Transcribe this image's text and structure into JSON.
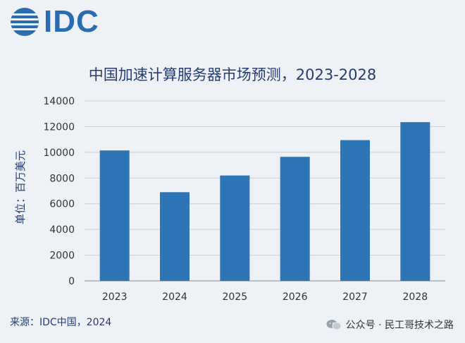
{
  "logo": {
    "text": "IDC"
  },
  "title": "中国加速计算服务器市场预测，2023-2028",
  "ylabel": "单位：百万美元",
  "source": "来源：IDC中国，2024",
  "watermark": "公众号 · 民工哥技术之路",
  "colors": {
    "bar": "#2e75b6",
    "title": "#243c73",
    "background": "#eef2f7"
  },
  "chart_data": {
    "type": "bar",
    "title": "中国加速计算服务器市场预测，2023-2028",
    "xlabel": "",
    "ylabel": "单位：百万美元",
    "categories": [
      "2023",
      "2024",
      "2025",
      "2026",
      "2027",
      "2028"
    ],
    "values": [
      10150,
      6900,
      8200,
      9650,
      10950,
      12350
    ],
    "ylim": [
      0,
      14000
    ],
    "yticks": [
      0,
      2000,
      4000,
      6000,
      8000,
      10000,
      12000,
      14000
    ],
    "grid": true,
    "legend": "none"
  }
}
